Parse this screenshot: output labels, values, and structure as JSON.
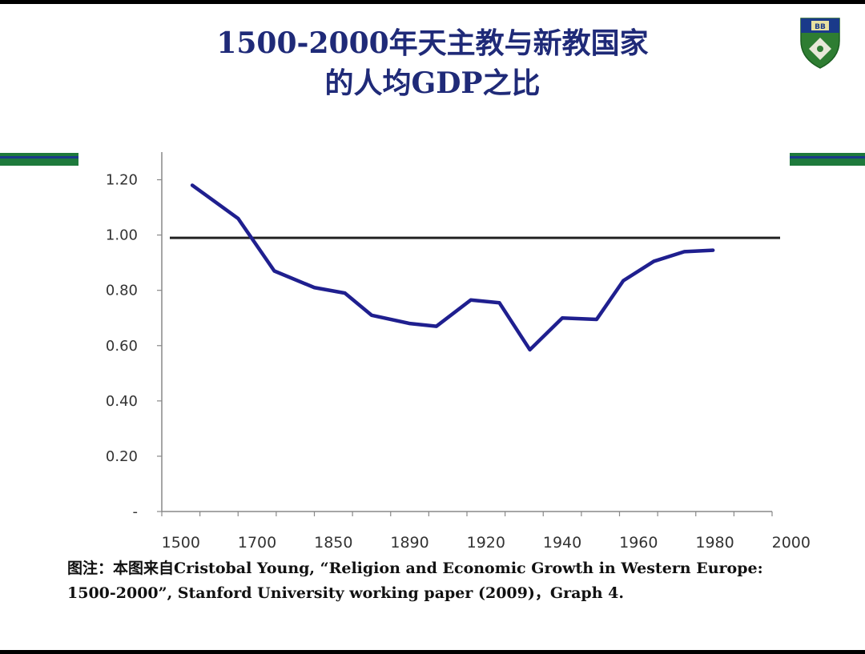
{
  "slide": {
    "title_line1": "1500-2000年天主教与新教国家",
    "title_line2": "的人均GDP之比",
    "caption_line1": "图注：本图来自Cristobal Young, “Religion and Economic Growth in Western Europe:",
    "caption_line2": "1500-2000”, Stanford University working paper (2009)，Graph 4.",
    "logo_text": "BB",
    "colors": {
      "title": "#1f2a78",
      "line": "#1f1f8f",
      "stripe_green": "#1e7a3c",
      "stripe_blue": "#1a3a8a",
      "logo_green": "#2e7d32"
    }
  },
  "chart_data": {
    "type": "line",
    "categories": [
      "1500",
      "1700",
      "1850",
      "1890",
      "1920",
      "1940",
      "1960",
      "1980",
      "2000"
    ],
    "y_ticks": [
      "-",
      "0.20",
      "0.40",
      "0.60",
      "0.80",
      "1.00",
      "1.20"
    ],
    "ylim": [
      0,
      1.3
    ],
    "reference_line": 0.99,
    "series": [
      {
        "values": [
          {
            "x": 0.3,
            "y": 1.18
          },
          {
            "x": 1.5,
            "y": 1.06
          },
          {
            "x": 2.45,
            "y": 0.87
          },
          {
            "x": 3.5,
            "y": 0.81
          },
          {
            "x": 4.3,
            "y": 0.79
          },
          {
            "x": 5.0,
            "y": 0.71
          },
          {
            "x": 6.0,
            "y": 0.68
          },
          {
            "x": 6.7,
            "y": 0.67
          },
          {
            "x": 7.6,
            "y": 0.765
          },
          {
            "x": 8.35,
            "y": 0.755
          },
          {
            "x": 9.15,
            "y": 0.585
          },
          {
            "x": 10.0,
            "y": 0.7
          },
          {
            "x": 10.9,
            "y": 0.695
          },
          {
            "x": 11.6,
            "y": 0.835
          },
          {
            "x": 12.4,
            "y": 0.905
          },
          {
            "x": 13.2,
            "y": 0.94
          },
          {
            "x": 13.95,
            "y": 0.945
          }
        ]
      }
    ]
  }
}
